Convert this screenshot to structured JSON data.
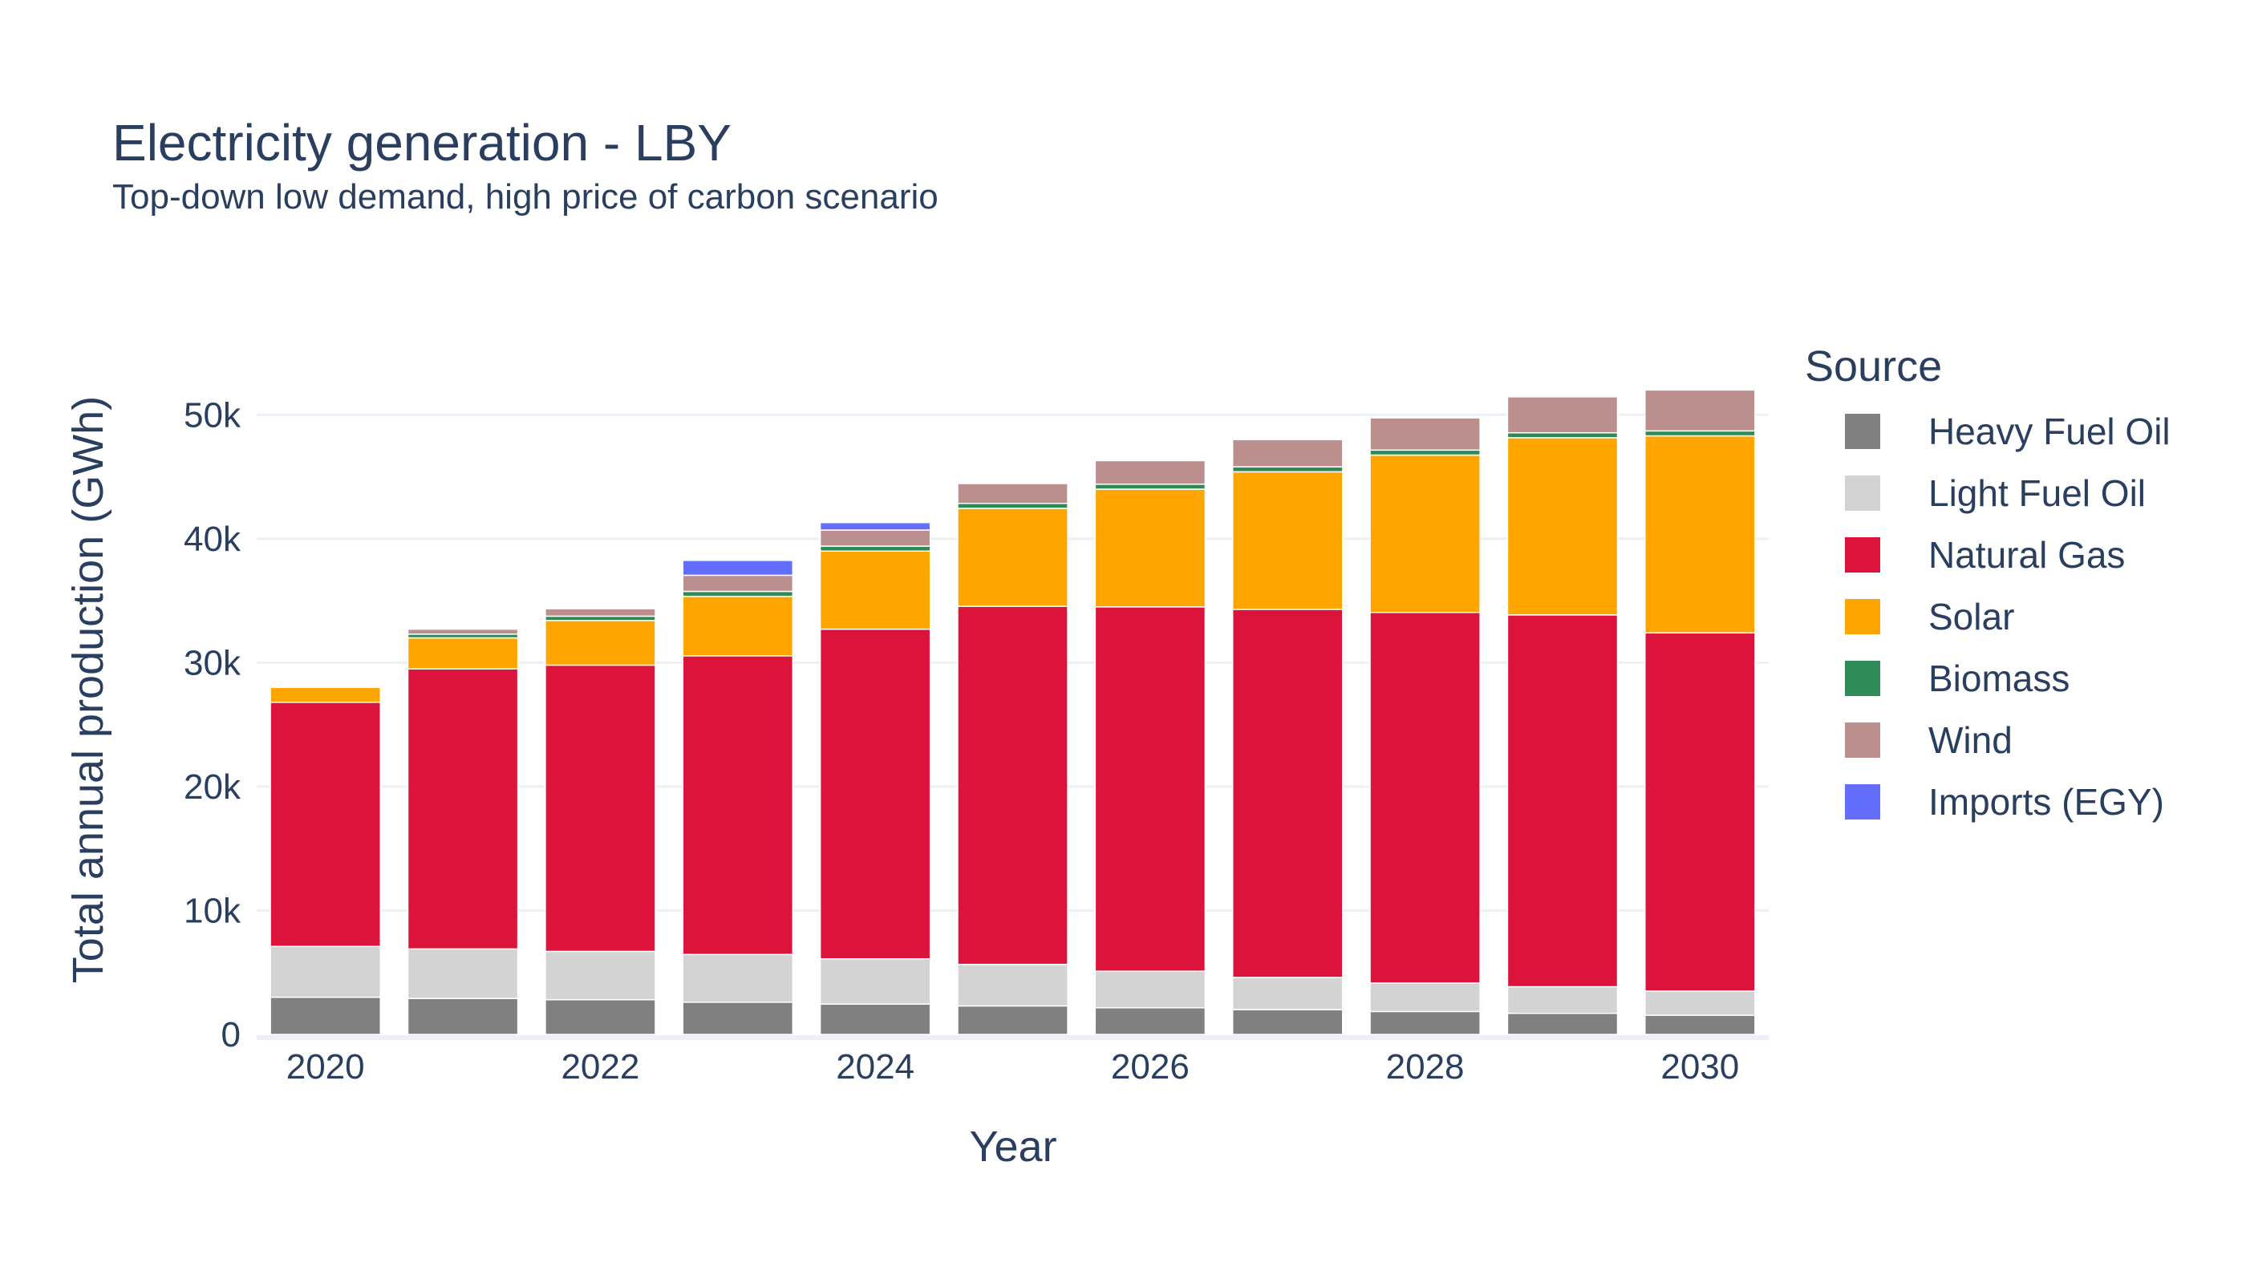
{
  "chart_data": {
    "type": "bar",
    "stacked": true,
    "title": "Electricity generation - LBY",
    "subtitle": "Top-down low demand, high price of carbon scenario",
    "xlabel": "Year",
    "ylabel": "Total annual production (GWh)",
    "ylim": [
      0,
      55000
    ],
    "y_ticks": [
      0,
      10000,
      20000,
      30000,
      40000,
      50000
    ],
    "y_tick_labels": [
      "0",
      "10k",
      "20k",
      "30k",
      "40k",
      "50k"
    ],
    "x": [
      2020,
      2021,
      2022,
      2023,
      2024,
      2025,
      2026,
      2027,
      2028,
      2029,
      2030
    ],
    "x_ticks": [
      2020,
      2022,
      2024,
      2026,
      2028,
      2030
    ],
    "x_tick_labels": [
      "2020",
      "2022",
      "2024",
      "2026",
      "2028",
      "2030"
    ],
    "grid": true,
    "legend_title": "Source",
    "legend_position": "right",
    "series": [
      {
        "name": "Heavy Fuel Oil",
        "color": "#808080",
        "values": [
          3000,
          2900,
          2800,
          2600,
          2450,
          2300,
          2150,
          2000,
          1850,
          1700,
          1550
        ]
      },
      {
        "name": "Light Fuel Oil",
        "color": "#d3d3d3",
        "values": [
          4100,
          4000,
          3900,
          3850,
          3650,
          3350,
          2950,
          2600,
          2300,
          2150,
          1950
        ]
      },
      {
        "name": "Natural Gas",
        "color": "#dc143c",
        "values": [
          19700,
          22600,
          23100,
          24100,
          26600,
          28900,
          29400,
          29700,
          29900,
          30000,
          28900
        ]
      },
      {
        "name": "Solar",
        "color": "#ffa500",
        "values": [
          1200,
          2500,
          3600,
          4800,
          6300,
          7900,
          9500,
          11100,
          12700,
          14300,
          15900
        ]
      },
      {
        "name": "Biomass",
        "color": "#2e8b57",
        "values": [
          0,
          300,
          350,
          400,
          400,
          400,
          400,
          400,
          400,
          400,
          400
        ]
      },
      {
        "name": "Wind",
        "color": "#bc8f8f",
        "values": [
          0,
          400,
          600,
          1300,
          1300,
          1600,
          1900,
          2200,
          2600,
          2900,
          3300
        ]
      },
      {
        "name": "Imports (EGY)",
        "color": "#636efa",
        "values": [
          0,
          0,
          0,
          1200,
          600,
          0,
          0,
          0,
          0,
          0,
          0
        ]
      }
    ]
  }
}
